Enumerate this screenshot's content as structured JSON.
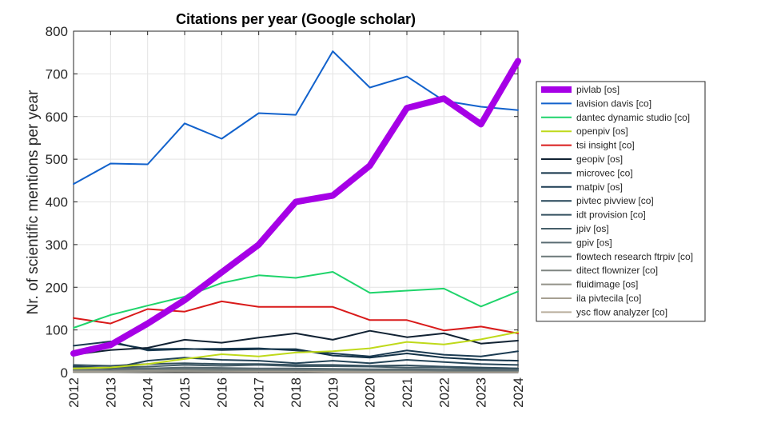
{
  "chart_data": {
    "type": "line",
    "title": "Citations per year (Google scholar)",
    "xlabel": "",
    "ylabel": "Nr. of scientific mentions per year",
    "x": [
      2012,
      2013,
      2014,
      2015,
      2016,
      2017,
      2018,
      2019,
      2020,
      2021,
      2022,
      2023,
      2024
    ],
    "xlim": [
      2012,
      2024
    ],
    "ylim": [
      0,
      800
    ],
    "yticks": [
      0,
      100,
      200,
      300,
      400,
      500,
      600,
      700,
      800
    ],
    "grid": true,
    "legend_position": "outside-right",
    "series": [
      {
        "name": "pivlab [os]",
        "color": "#a600e6",
        "values": [
          45,
          65,
          115,
          170,
          235,
          300,
          400,
          415,
          485,
          620,
          642,
          582,
          730
        ]
      },
      {
        "name": "lavision davis [co]",
        "color": "#1262cc",
        "values": [
          442,
          490,
          488,
          584,
          548,
          608,
          604,
          753,
          668,
          694,
          637,
          623,
          615
        ]
      },
      {
        "name": "dantec dynamic studio [co]",
        "color": "#1fd46b",
        "values": [
          105,
          135,
          157,
          178,
          210,
          228,
          222,
          236,
          187,
          192,
          197,
          155,
          190
        ]
      },
      {
        "name": "openpiv [os]",
        "color": "#bfd91a",
        "values": [
          10,
          12,
          20,
          32,
          43,
          38,
          47,
          50,
          57,
          72,
          66,
          78,
          95
        ]
      },
      {
        "name": "tsi insight [co]",
        "color": "#d91a1a",
        "values": [
          128,
          115,
          149,
          143,
          167,
          154,
          154,
          154,
          123,
          123,
          99,
          108,
          92
        ]
      },
      {
        "name": "geopiv [os]",
        "color": "#112233",
        "values": [
          42,
          53,
          58,
          77,
          70,
          82,
          92,
          77,
          98,
          83,
          92,
          68,
          75
        ]
      },
      {
        "name": "microvec [co]",
        "color": "#123248",
        "values": [
          40,
          70,
          55,
          56,
          53,
          55,
          55,
          40,
          35,
          45,
          35,
          30,
          28
        ]
      },
      {
        "name": "matpiv [os]",
        "color": "#1b3b52",
        "values": [
          63,
          73,
          52,
          55,
          56,
          57,
          52,
          45,
          38,
          52,
          42,
          38,
          50
        ]
      },
      {
        "name": "pivtec pivview [co]",
        "color": "#254558",
        "values": [
          15,
          10,
          28,
          35,
          30,
          28,
          22,
          28,
          22,
          30,
          25,
          20,
          18
        ]
      },
      {
        "name": "idt provision [co]",
        "color": "#34505f",
        "values": [
          18,
          16,
          20,
          22,
          20,
          20,
          18,
          18,
          16,
          17,
          14,
          12,
          10
        ]
      },
      {
        "name": "jpiv [os]",
        "color": "#465e69",
        "values": [
          14,
          12,
          14,
          18,
          16,
          18,
          15,
          15,
          14,
          12,
          12,
          10,
          10
        ]
      },
      {
        "name": "gpiv [os]",
        "color": "#596b72",
        "values": [
          12,
          10,
          10,
          12,
          11,
          10,
          10,
          9,
          8,
          8,
          7,
          6,
          6
        ]
      },
      {
        "name": "flowtech research ftrpiv [co]",
        "color": "#6c7879",
        "values": [
          8,
          7,
          9,
          9,
          8,
          8,
          7,
          8,
          6,
          6,
          5,
          5,
          5
        ]
      },
      {
        "name": "ditect flownizer [co]",
        "color": "#7f8581",
        "values": [
          6,
          6,
          7,
          7,
          6,
          6,
          6,
          5,
          5,
          5,
          4,
          4,
          4
        ]
      },
      {
        "name": "fluidimage [os]",
        "color": "#939289",
        "values": [
          1,
          1,
          2,
          3,
          4,
          5,
          5,
          6,
          6,
          7,
          7,
          8,
          8
        ]
      },
      {
        "name": "ila pivtecila [co]",
        "color": "#a6a092",
        "values": [
          5,
          5,
          5,
          5,
          4,
          4,
          4,
          4,
          4,
          3,
          3,
          3,
          3
        ]
      },
      {
        "name": "ysc flow analyzer [co]",
        "color": "#b9ae9c",
        "values": [
          3,
          3,
          3,
          3,
          3,
          3,
          3,
          2,
          2,
          2,
          2,
          2,
          2
        ]
      }
    ]
  }
}
